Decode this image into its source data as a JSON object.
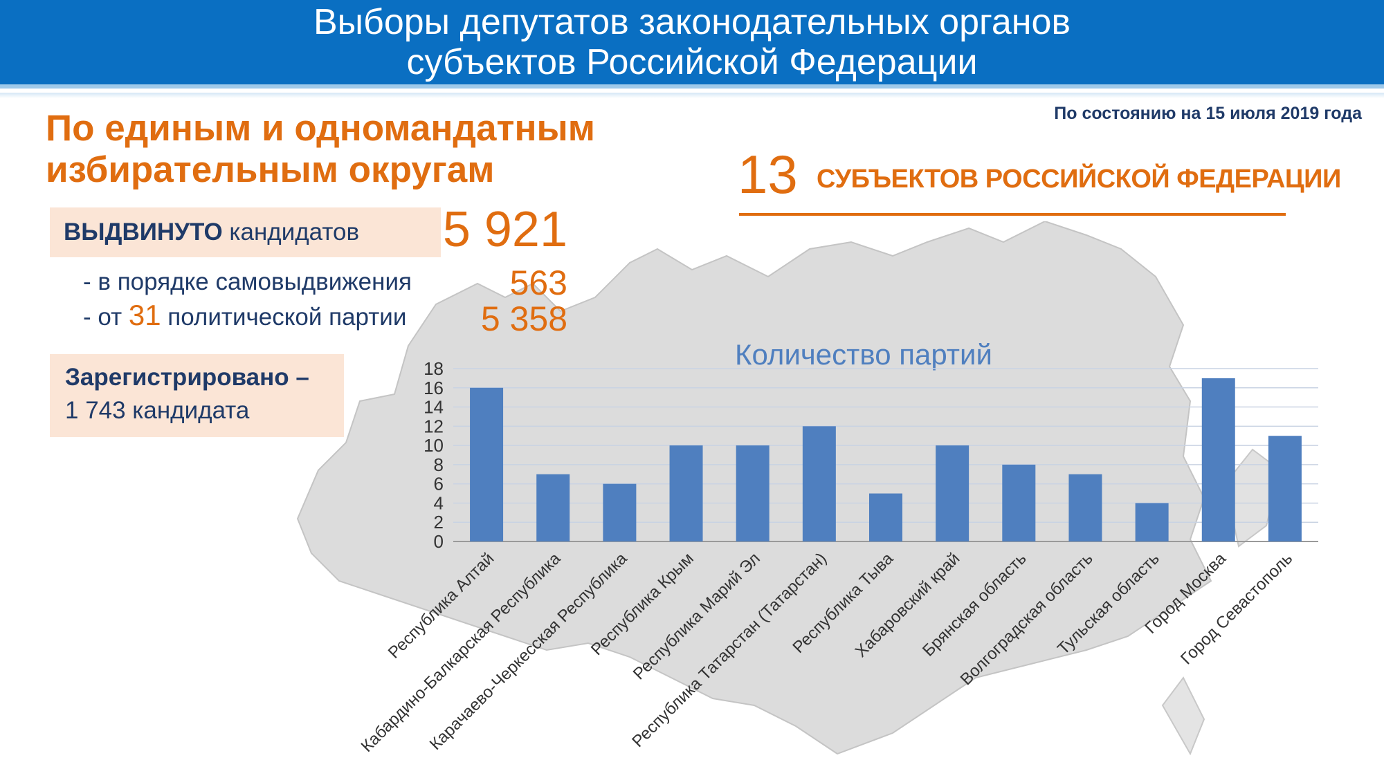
{
  "header": {
    "line1": "Выборы депутатов законодательных органов",
    "line2": "субъектов Российской Федерации"
  },
  "date_note": "По состоянию на 15 июля 2019 года",
  "section": {
    "title_line1": "По единым и одномандатным",
    "title_line2": "избирательным округам"
  },
  "nominated": {
    "label_bold": "ВЫДВИНУТО",
    "label_rest": " кандидатов",
    "value": "5 921",
    "self_label": "- в порядке самовыдвижения",
    "self_value": "563",
    "party_prefix": "- от ",
    "party_count": "31",
    "party_suffix": " политической партии",
    "party_value": "5 358"
  },
  "registered": {
    "label": "Зарегистрировано –",
    "value": "1 743 кандидата"
  },
  "subjects": {
    "count": "13",
    "label": "СУБЪЕКТОВ РОССИЙСКОЙ ФЕДЕРАЦИИ"
  },
  "colors": {
    "banner": "#0a6fc2",
    "accent_orange": "#e06d10",
    "text_dark_blue": "#1f3a68",
    "box_peach": "#fbe5d6",
    "bar_blue": "#4f7fbf",
    "chart_title": "#4f7fbf",
    "map_fill": "#dcdcdc"
  },
  "chart_data": {
    "type": "bar",
    "title": "Количество партий",
    "xlabel": "",
    "ylabel": "",
    "ylim": [
      0,
      18
    ],
    "yticks": [
      "0",
      "2",
      "4",
      "6",
      "8",
      "10",
      "12",
      "14",
      "16",
      "18"
    ],
    "grid": true,
    "legend": "none",
    "categories": [
      "Республика Алтай",
      "Кабардино-Балкарская Республика",
      "Карачаево-Черкесская Республика",
      "Республика Крым",
      "Республика Марий Эл",
      "Республика Татарстан (Татарстан)",
      "Республика Тыва",
      "Хабаровский край",
      "Брянская область",
      "Волгоградская область",
      "Тульская область",
      "Город Москва",
      "Город Севастополь"
    ],
    "values": [
      16,
      7,
      6,
      10,
      10,
      12,
      5,
      10,
      8,
      7,
      4,
      17,
      11
    ]
  }
}
